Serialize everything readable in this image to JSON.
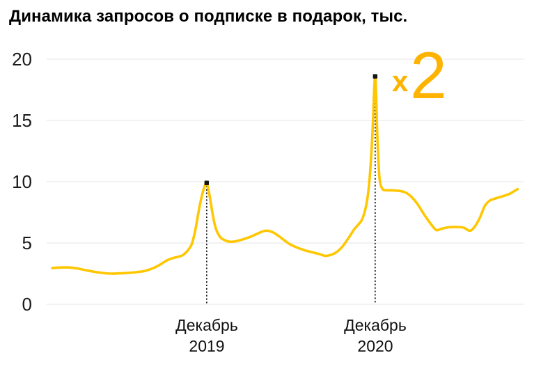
{
  "chart_data": {
    "type": "line",
    "title": "Динамика запросов о подписке в подарок, тыс.",
    "y_axis": {
      "ticks": [
        0,
        5,
        10,
        15,
        20
      ],
      "range": [
        0,
        20
      ],
      "grid": true
    },
    "x_axis": {
      "labels": [
        {
          "line1": "Декабрь",
          "line2": "2019",
          "month_index": 11
        },
        {
          "line1": "Декабрь",
          "line2": "2020",
          "month_index": 23
        }
      ]
    },
    "series": [
      {
        "name": "Запросы о подписке в подарок, тыс.",
        "color": "#FFC702",
        "months_start": "2019-01",
        "monthly_values": [
          3.0,
          3.0,
          2.9,
          2.65,
          2.5,
          2.55,
          2.6,
          2.9,
          3.55,
          3.9,
          5.0,
          9.9,
          5.4,
          5.15,
          5.45,
          5.95,
          5.6,
          4.85,
          4.4,
          4.1,
          4.1,
          5.2,
          6.8,
          18.6,
          9.3,
          9.2,
          8.2,
          6.5,
          6.25,
          6.3,
          6.3,
          8.4,
          8.8,
          9.35
        ]
      }
    ],
    "peaks": [
      {
        "date": "Декабрь 2019",
        "month_index": 11,
        "value": 9.9
      },
      {
        "date": "Декабрь 2020",
        "month_index": 23,
        "value": 18.6
      }
    ],
    "annotation": {
      "prefix": "х",
      "value": "2",
      "color": "#FFB301"
    },
    "colors": {
      "line": "#FFC702",
      "grid": "#e9e9e9",
      "tick_text": "#1a1a1a",
      "marker": "#141414",
      "dotted_line": "#1a1a1a"
    },
    "legend": "off",
    "curve_points": [
      [
        0,
        2.95
      ],
      [
        0.6,
        3.0
      ],
      [
        1.2,
        3.0
      ],
      [
        1.8,
        2.92
      ],
      [
        2.4,
        2.78
      ],
      [
        3.0,
        2.65
      ],
      [
        3.6,
        2.55
      ],
      [
        4.2,
        2.5
      ],
      [
        4.8,
        2.52
      ],
      [
        5.4,
        2.56
      ],
      [
        6.0,
        2.62
      ],
      [
        6.6,
        2.72
      ],
      [
        7.2,
        2.95
      ],
      [
        7.7,
        3.25
      ],
      [
        8.2,
        3.6
      ],
      [
        8.7,
        3.8
      ],
      [
        9.2,
        3.95
      ],
      [
        9.45,
        4.15
      ],
      [
        9.7,
        4.45
      ],
      [
        9.95,
        4.95
      ],
      [
        10.2,
        6.1
      ],
      [
        10.45,
        7.7
      ],
      [
        10.65,
        8.8
      ],
      [
        10.85,
        9.6
      ],
      [
        11.0,
        9.9
      ],
      [
        11.2,
        8.9
      ],
      [
        11.45,
        7.2
      ],
      [
        11.65,
        6.2
      ],
      [
        11.95,
        5.5
      ],
      [
        12.25,
        5.25
      ],
      [
        12.65,
        5.1
      ],
      [
        13.1,
        5.15
      ],
      [
        13.6,
        5.3
      ],
      [
        14.1,
        5.5
      ],
      [
        14.6,
        5.75
      ],
      [
        15.0,
        5.95
      ],
      [
        15.35,
        6.0
      ],
      [
        15.75,
        5.85
      ],
      [
        16.15,
        5.55
      ],
      [
        16.55,
        5.2
      ],
      [
        17.0,
        4.85
      ],
      [
        17.5,
        4.6
      ],
      [
        18.0,
        4.4
      ],
      [
        18.5,
        4.25
      ],
      [
        19.0,
        4.1
      ],
      [
        19.45,
        3.95
      ],
      [
        19.9,
        4.05
      ],
      [
        20.3,
        4.3
      ],
      [
        20.7,
        4.75
      ],
      [
        21.1,
        5.4
      ],
      [
        21.5,
        6.1
      ],
      [
        21.8,
        6.5
      ],
      [
        22.1,
        7.0
      ],
      [
        22.4,
        8.3
      ],
      [
        22.6,
        10.2
      ],
      [
        22.8,
        13.8
      ],
      [
        23.0,
        18.6
      ],
      [
        23.15,
        13.8
      ],
      [
        23.3,
        10.4
      ],
      [
        23.5,
        9.45
      ],
      [
        23.8,
        9.3
      ],
      [
        24.2,
        9.3
      ],
      [
        24.7,
        9.25
      ],
      [
        25.1,
        9.15
      ],
      [
        25.5,
        8.85
      ],
      [
        26.0,
        8.2
      ],
      [
        26.5,
        7.3
      ],
      [
        27.0,
        6.5
      ],
      [
        27.35,
        6.05
      ],
      [
        27.7,
        6.15
      ],
      [
        28.2,
        6.28
      ],
      [
        28.8,
        6.3
      ],
      [
        29.3,
        6.25
      ],
      [
        29.75,
        6.0
      ],
      [
        30.1,
        6.35
      ],
      [
        30.45,
        7.05
      ],
      [
        30.8,
        8.0
      ],
      [
        31.15,
        8.45
      ],
      [
        31.6,
        8.65
      ],
      [
        32.05,
        8.8
      ],
      [
        32.55,
        9.0
      ],
      [
        33.0,
        9.3
      ],
      [
        33.15,
        9.4
      ]
    ]
  }
}
